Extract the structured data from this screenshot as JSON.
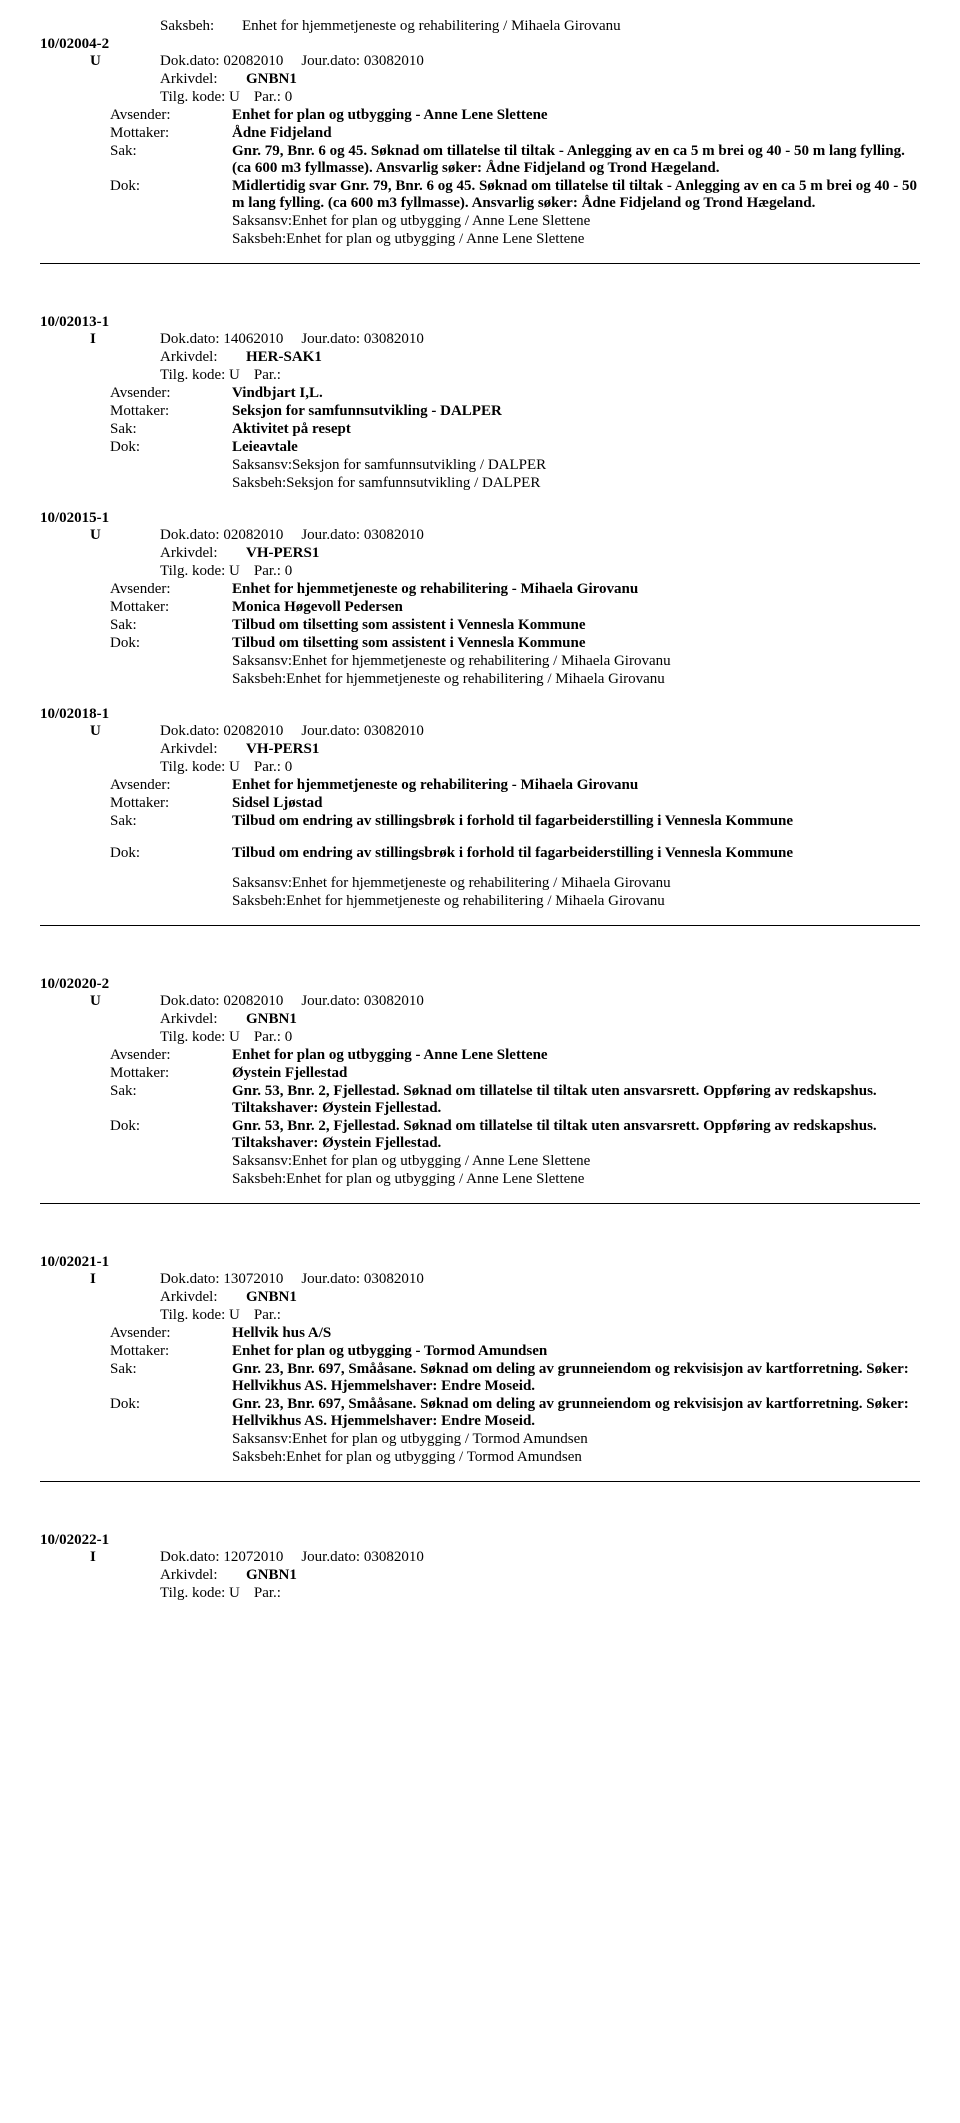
{
  "labels": {
    "saksbeh": "Saksbeh:",
    "dokdato": "Dok.dato:",
    "jourdato": "Jour.dato:",
    "arkivdel": "Arkivdel:",
    "tilgkode": "Tilg. kode:",
    "par": "Par.:",
    "avsender": "Avsender:",
    "mottaker": "Mottaker:",
    "sak": "Sak:",
    "dok": "Dok:",
    "saksansv": "Saksansv:",
    "saksbeh2": "Saksbeh:"
  },
  "records": [
    {
      "top_saksbeh": "Enhet for hjemmetjeneste og rehabilitering / Mihaela Girovanu",
      "caseid": "10/02004-2",
      "leader": "U",
      "dokdato": "02082010",
      "jourdato": "03082010",
      "arkivdel": "GNBN1",
      "tilgkode": "U",
      "par": "0",
      "avsender": "Enhet for plan og utbygging - Anne Lene Slettene",
      "mottaker": "Ådne Fidjeland",
      "sak": "Gnr. 79, Bnr. 6 og 45. Søknad om tillatelse til tiltak - Anlegging av en ca 5 m brei og 40 - 50 m lang fylling. (ca 600 m3 fyllmasse). Ansvarlig søker: Ådne Fidjeland og Trond Hægeland.",
      "dok": "Midlertidig svar Gnr. 79, Bnr. 6 og 45. Søknad om tillatelse til tiltak - Anlegging av en ca 5 m brei og 40 - 50 m lang fylling. (ca 600 m3 fyllmasse). Ansvarlig søker: Ådne Fidjeland og Trond Hægeland.",
      "saksansv": "Enhet for plan og utbygging / Anne Lene Slettene",
      "saksbeh": "Enhet for plan og utbygging / Anne Lene Slettene"
    },
    {
      "caseid": "10/02013-1",
      "leader": "I",
      "dokdato": "14062010",
      "jourdato": "03082010",
      "arkivdel": "HER-SAK1",
      "tilgkode": "U",
      "par": "",
      "avsender": "Vindbjart I,L.",
      "mottaker": "Seksjon for samfunnsutvikling - DALPER",
      "sak": "Aktivitet på resept",
      "dok": "Leieavtale",
      "saksansv": "Seksjon for samfunnsutvikling / DALPER",
      "saksbeh": "Seksjon for samfunnsutvikling / DALPER",
      "no_sep": true
    },
    {
      "caseid": "10/02015-1",
      "leader": "U",
      "dokdato": "02082010",
      "jourdato": "03082010",
      "arkivdel": "VH-PERS1",
      "tilgkode": "U",
      "par": "0",
      "avsender": "Enhet for hjemmetjeneste og rehabilitering - Mihaela Girovanu",
      "mottaker": "Monica Høgevoll Pedersen",
      "sak": "Tilbud om tilsetting som assistent i Vennesla Kommune",
      "dok": "Tilbud om tilsetting som assistent i Vennesla Kommune",
      "saksansv": "Enhet for hjemmetjeneste og rehabilitering / Mihaela Girovanu",
      "saksbeh": "Enhet for hjemmetjeneste og rehabilitering / Mihaela Girovanu",
      "no_sep": true
    },
    {
      "caseid": "10/02018-1",
      "leader": "U",
      "dokdato": "02082010",
      "jourdato": "03082010",
      "arkivdel": "VH-PERS1",
      "tilgkode": "U",
      "par": "0",
      "avsender": "Enhet for hjemmetjeneste og rehabilitering - Mihaela Girovanu",
      "mottaker": "Sidsel Ljøstad",
      "sak": "Tilbud om endring av stillingsbrøk i forhold til fagarbeiderstilling i Vennesla Kommune",
      "dok": "Tilbud om endring av stillingsbrøk i forhold til fagarbeiderstilling i Vennesla Kommune",
      "dok_gap": true,
      "saksansv": "Enhet for hjemmetjeneste og rehabilitering / Mihaela Girovanu",
      "saksbeh": "Enhet for hjemmetjeneste og rehabilitering / Mihaela Girovanu"
    },
    {
      "caseid": "10/02020-2",
      "leader": "U",
      "dokdato": "02082010",
      "jourdato": "03082010",
      "arkivdel": "GNBN1",
      "tilgkode": "U",
      "par": "0",
      "avsender": "Enhet for plan og utbygging - Anne Lene Slettene",
      "mottaker": "Øystein Fjellestad",
      "sak": "Gnr. 53, Bnr. 2, Fjellestad. Søknad om tillatelse til tiltak uten ansvarsrett. Oppføring av redskapshus. Tiltakshaver: Øystein Fjellestad.",
      "dok": "Gnr. 53, Bnr. 2, Fjellestad. Søknad om tillatelse til tiltak uten ansvarsrett. Oppføring av redskapshus. Tiltakshaver: Øystein Fjellestad.",
      "saksansv": "Enhet for plan og utbygging / Anne Lene Slettene",
      "saksbeh": "Enhet for plan og utbygging / Anne Lene Slettene"
    },
    {
      "caseid": "10/02021-1",
      "leader": "I",
      "dokdato": "13072010",
      "jourdato": "03082010",
      "arkivdel": "GNBN1",
      "tilgkode": "U",
      "par": "",
      "avsender": "Hellvik hus A/S",
      "mottaker": "Enhet for plan og utbygging - Tormod Amundsen",
      "sak": "Gnr. 23, Bnr. 697, Smååsane. Søknad om deling av grunneiendom og rekvisisjon av kartforretning. Søker: Hellvikhus AS. Hjemmelshaver: Endre Moseid.",
      "dok": "Gnr. 23, Bnr. 697, Smååsane. Søknad om deling av grunneiendom og rekvisisjon av kartforretning. Søker: Hellvikhus AS. Hjemmelshaver: Endre Moseid.",
      "saksansv": "Enhet for plan og utbygging / Tormod Amundsen",
      "saksbeh": "Enhet for plan og utbygging / Tormod Amundsen"
    },
    {
      "caseid": "10/02022-1",
      "leader": "I",
      "dokdato": "12072010",
      "jourdato": "03082010",
      "arkivdel": "GNBN1",
      "tilgkode": "U",
      "par": "",
      "truncated": true
    }
  ]
}
